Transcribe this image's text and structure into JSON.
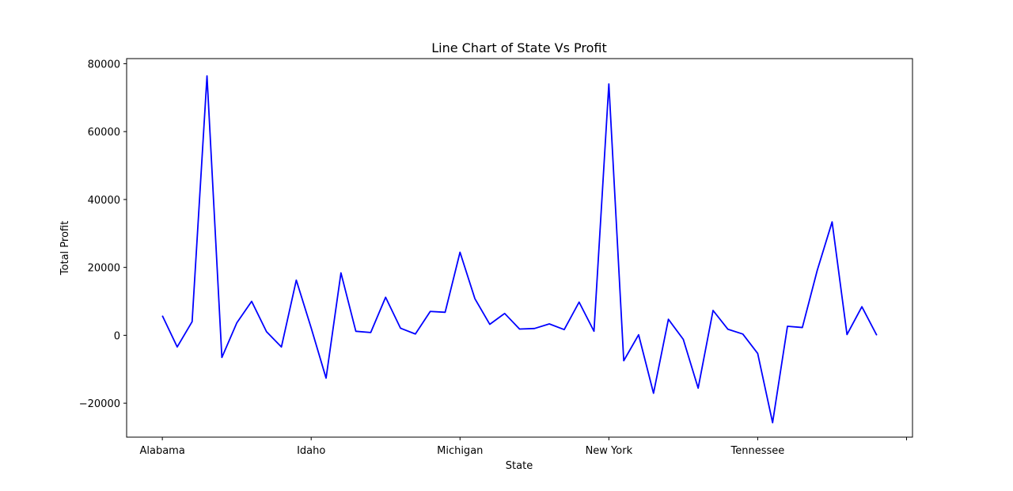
{
  "chart_data": {
    "type": "line",
    "title": "Line Chart of State Vs Profit",
    "xlabel": "State",
    "ylabel": "Total Profit",
    "x_tick_labels": [
      "Alabama",
      "Idaho",
      "Michigan",
      "New York",
      "Tennessee",
      ""
    ],
    "x_tick_positions": [
      0,
      10,
      20,
      30,
      40,
      50
    ],
    "y_ticks": [
      -20000,
      0,
      20000,
      40000,
      60000,
      80000
    ],
    "ylim": [
      -30000,
      81500
    ],
    "xlim": [
      -2.4,
      50.4
    ],
    "grid": false,
    "series": [
      {
        "color": "#0000ff",
        "x": [
          0,
          1,
          2,
          3,
          4,
          5,
          6,
          7,
          8,
          9,
          10,
          11,
          12,
          13,
          14,
          15,
          16,
          17,
          18,
          19,
          20,
          21,
          22,
          23,
          24,
          25,
          26,
          27,
          28,
          29,
          30,
          31,
          32,
          33,
          34,
          35,
          36,
          37,
          38,
          39,
          40,
          41,
          42,
          43,
          44,
          45,
          46,
          47,
          48
        ],
        "values": [
          5787,
          -3428,
          4008,
          76381,
          -6527,
          3637,
          9998,
          1059,
          -3427,
          16250,
          2164,
          -12608,
          18383,
          1183,
          826,
          11200,
          2097,
          387,
          7031,
          6788,
          24463,
          10771,
          3233,
          6434,
          1836,
          2004,
          3359,
          1676,
          9771,
          1197,
          74039,
          -7491,
          155,
          -17060,
          4717,
          -1195,
          -15560,
          7323,
          1777,
          364,
          -5342,
          -25729,
          2650,
          2294,
          19125,
          33402,
          227,
          8414,
          0
        ]
      }
    ]
  }
}
